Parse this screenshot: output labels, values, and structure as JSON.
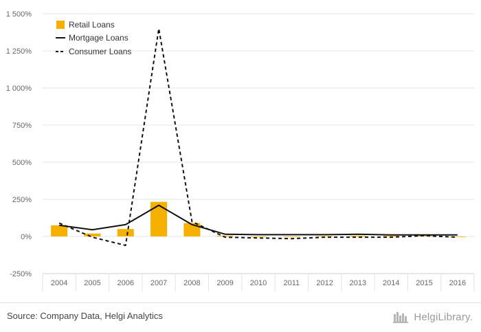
{
  "chart_data": {
    "type": "bar",
    "categories": [
      "2004",
      "2005",
      "2006",
      "2007",
      "2008",
      "2009",
      "2010",
      "2011",
      "2012",
      "2013",
      "2014",
      "2015",
      "2016"
    ],
    "y_ticks": [
      "1 500%",
      "1 250%",
      "1 000%",
      "750%",
      "500%",
      "250%",
      "0%",
      "-250%"
    ],
    "ylim": [
      -250,
      1500
    ],
    "grid": true,
    "legend_position": "top-left",
    "series": [
      {
        "name": "Retail Loans",
        "kind": "bar",
        "color": "#f5b000",
        "values": [
          75,
          20,
          50,
          233,
          90,
          5,
          0,
          0,
          3,
          5,
          5,
          5,
          -3
        ]
      },
      {
        "name": "Mortgage Loans",
        "kind": "line",
        "style": "solid",
        "color": "#111111",
        "values": [
          75,
          45,
          80,
          210,
          80,
          15,
          12,
          12,
          12,
          15,
          10,
          10,
          10
        ]
      },
      {
        "name": "Consumer Loans",
        "kind": "line",
        "style": "dashed",
        "color": "#111111",
        "values": [
          90,
          -5,
          -60,
          1400,
          100,
          -5,
          -10,
          -15,
          -5,
          -5,
          -5,
          5,
          -5
        ]
      }
    ]
  },
  "footer": {
    "source": "Source: Company Data, Helgi Analytics",
    "brand": "HelgiLibrary."
  }
}
